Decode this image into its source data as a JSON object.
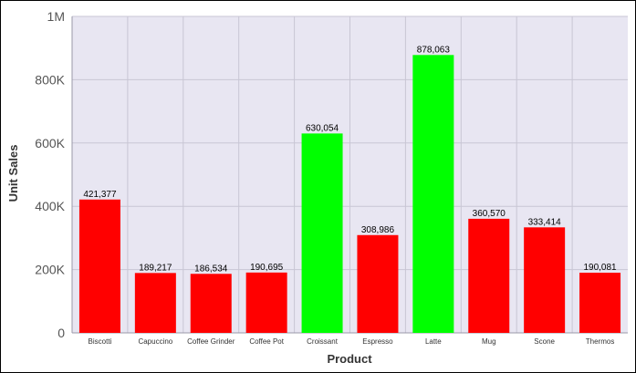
{
  "chart_data": {
    "type": "bar",
    "title": "",
    "xlabel": "Product",
    "ylabel": "Unit Sales",
    "categories": [
      "Biscotti",
      "Capuccino",
      "Coffee Grinder",
      "Coffee Pot",
      "Croissant",
      "Espresso",
      "Latte",
      "Mug",
      "Scone",
      "Thermos"
    ],
    "values": [
      421377,
      189217,
      186534,
      190695,
      630054,
      308986,
      878063,
      360570,
      333414,
      190081
    ],
    "data_labels": [
      "421,377",
      "189,217",
      "186,534",
      "190,695",
      "630,054",
      "308,986",
      "878,063",
      "360,570",
      "333,414",
      "190,081"
    ],
    "ylim": [
      0,
      1000000
    ],
    "yticks": [
      0,
      200000,
      400000,
      600000,
      800000,
      1000000
    ],
    "ytick_labels": [
      "0",
      "200K",
      "400K",
      "600K",
      "800K",
      "1M"
    ],
    "bar_colors": [
      "#ff0000",
      "#ff0000",
      "#ff0000",
      "#ff0000",
      "#00ff00",
      "#ff0000",
      "#00ff00",
      "#ff0000",
      "#ff0000",
      "#ff0000"
    ],
    "plot_background": "#e8e6f2",
    "grid_color": "#c8c6d4",
    "grid": true,
    "legend": "none"
  }
}
